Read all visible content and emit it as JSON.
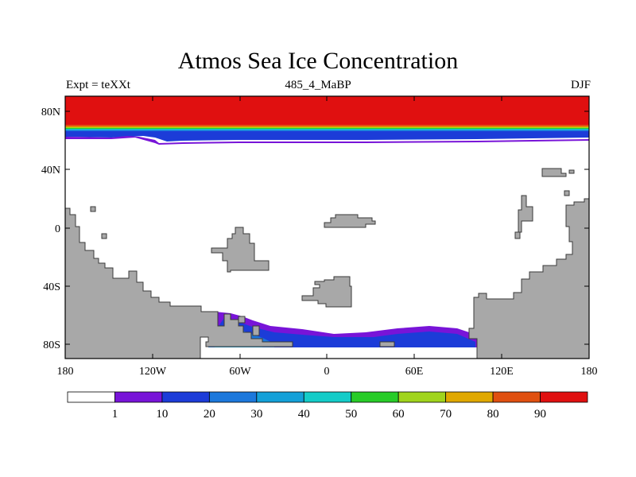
{
  "title": "Atmos Sea Ice Concentration",
  "left_label": "Expt = teXXt",
  "center_label": "485_4_MaBP",
  "right_label": "DJF",
  "y_ticks": [
    "80N",
    "40N",
    "0",
    "40S",
    "80S"
  ],
  "x_ticks": [
    "180",
    "120W",
    "60W",
    "0",
    "60E",
    "120E",
    "180"
  ],
  "colorbar": {
    "labels": [
      "1",
      "10",
      "20",
      "30",
      "40",
      "50",
      "60",
      "70",
      "80",
      "90"
    ],
    "colors": [
      "#ffffff",
      "#7814d8",
      "#1c3cd8",
      "#1c78dc",
      "#14a0d8",
      "#14ccc8",
      "#28cc28",
      "#a0d41c",
      "#e0a800",
      "#e05010",
      "#e01010"
    ]
  },
  "colors": {
    "land": "#a8a8a8",
    "ocean": "#ffffff",
    "ice_max": "#e01010",
    "ice_low": "#7814d8",
    "ice_mid": "#1c3cd8"
  }
}
